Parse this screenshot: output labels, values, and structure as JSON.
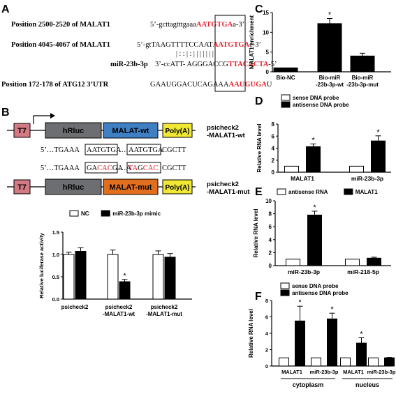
{
  "colors": {
    "red": "#e8202a",
    "t7": "#d47a85",
    "hrluc": "#6d6e71",
    "malat_wt": "#3f7fc4",
    "malat_mut": "#e16e1d",
    "polya": "#f0e834"
  },
  "panel_a": {
    "letter": "A",
    "rows": [
      {
        "label": "Position 2500-2520 of MALAT1",
        "seq_prefix": "5’-gcttagtttgaaa",
        "seq_highlight": "AATGTGA",
        "seq_suffix": "a-3’"
      },
      {
        "label": "Position 4045-4067 of MALAT1",
        "seq_prefix": "5’-gtTAAGTTTTCCAAT",
        "seq_highlight": "AATGTGA",
        "seq_suffix": "c-3’"
      },
      {
        "label": "miR-23b-3p",
        "seq_prefix": "3’-ccATT- AGGGACCG",
        "seq_highlight": "TTACACTA",
        "seq_suffix": "-5’"
      },
      {
        "label": "Position 172-178 of ATG12  3’UTR",
        "seq_prefix": "GAAUGGACUCAGAAA",
        "seq_highlight": "AAUGUGA",
        "seq_suffix": "U"
      }
    ],
    "pairing": "| : :  |     : | | | | | | |"
  },
  "panel_b": {
    "letter": "B",
    "construct_wt": {
      "t7": "T7",
      "hrluc": "hRluc",
      "malat": "MALAT-wt",
      "polya": "Poly(A)",
      "name1": "psicheck2",
      "name2": "-MALAT1-wt"
    },
    "construct_mut": {
      "t7": "T7",
      "hrluc": "hRluc",
      "malat": "MALAT-mut",
      "polya": "Poly(A)",
      "name1": "psicheck2",
      "name2": "-MALAT1-mut"
    },
    "seq_wt": {
      "pre": "5’…TGAAA",
      "site1": "AATGTGA",
      "mid": "…",
      "site2": "AATGTGA",
      "post": "CGCTT"
    },
    "seq_mut": {
      "pre": "5’…TGAAA",
      "s1a": "GA",
      "s1b": "CAC",
      "s1c": "GA",
      "mid": "…A",
      "s2a": "TA",
      "s2b": "G",
      "s2c": "CAC",
      "post": "CGCTT"
    }
  },
  "chart_data": [
    {
      "panel": "B",
      "type": "bar",
      "categories": [
        "psicheck2",
        "psicheck2\n-MALAT1-wt",
        "psicheck2\n-MALAT1-mut"
      ],
      "ylabel": "Relative luciferase activity",
      "ylim": [
        0,
        1.5
      ],
      "yticks": [
        "0.0",
        "0.5",
        "1.0",
        "1.5"
      ],
      "legend": "top",
      "series": [
        {
          "name": "NC",
          "values": [
            1.0,
            1.0,
            1.0
          ],
          "errors": [
            0.05,
            0.1,
            0.08
          ],
          "fill": "#ffffff"
        },
        {
          "name": "miR-23b-3p mimic",
          "values": [
            1.07,
            0.39,
            0.94
          ],
          "errors": [
            0.08,
            0.05,
            0.08
          ],
          "fill": "#000000"
        }
      ],
      "annotations": [
        {
          "category": 1,
          "series": 1,
          "text": "*"
        }
      ]
    },
    {
      "panel": "C",
      "type": "bar",
      "categories": [
        "Bio-NC",
        "Bio-miR\n-23b-3p-wt",
        "Bio-miR\n-23b-3p-mut"
      ],
      "ylabel": "MALAT1 enrichment",
      "ylim": [
        0,
        15
      ],
      "yticks": [
        "0",
        "5",
        "10",
        "15"
      ],
      "series": [
        {
          "name": "",
          "values": [
            1.0,
            12.2,
            4.0
          ],
          "errors": [
            0.0,
            1.3,
            0.7
          ],
          "fill": "#000000"
        }
      ],
      "annotations": [
        {
          "category": 1,
          "series": 0,
          "text": "*"
        }
      ]
    },
    {
      "panel": "D",
      "type": "bar",
      "categories": [
        "MALAT1",
        "miR-23b-3p"
      ],
      "ylabel": "Relative RNA level",
      "ylim": [
        0,
        8
      ],
      "yticks": [
        "0",
        "2",
        "4",
        "6",
        "8"
      ],
      "legend": "top-left",
      "series": [
        {
          "name": "sense DNA probe",
          "values": [
            1.0,
            1.0
          ],
          "errors": [
            0,
            0
          ],
          "fill": "#ffffff"
        },
        {
          "name": "antisense DNA probe",
          "values": [
            4.25,
            5.2
          ],
          "errors": [
            0.45,
            0.85
          ],
          "fill": "#000000"
        }
      ],
      "annotations": [
        {
          "category": 0,
          "series": 1,
          "text": "*"
        },
        {
          "category": 1,
          "series": 1,
          "text": "*"
        }
      ]
    },
    {
      "panel": "E",
      "type": "bar",
      "categories": [
        "miR-23b-3p",
        "miR-218-5p"
      ],
      "ylabel": "Relative RNA level",
      "ylim": [
        0,
        10
      ],
      "yticks": [
        "0",
        "2",
        "4",
        "6",
        "8",
        "10"
      ],
      "legend": "top-left",
      "series": [
        {
          "name": "antisense RNA",
          "values": [
            1.0,
            1.0
          ],
          "errors": [
            0,
            0
          ],
          "fill": "#ffffff"
        },
        {
          "name": "MALAT1",
          "values": [
            7.8,
            1.15
          ],
          "errors": [
            0.6,
            0.15
          ],
          "fill": "#000000"
        }
      ],
      "annotations": [
        {
          "category": 0,
          "series": 1,
          "text": "*"
        }
      ]
    },
    {
      "panel": "F",
      "type": "bar",
      "categories": [
        "MALAT1",
        "miR-23b-3p",
        "MALAT1",
        "miR-23b-3p"
      ],
      "groups": [
        {
          "label": "cytoplasm",
          "span": [
            0,
            1
          ]
        },
        {
          "label": "nucleus",
          "span": [
            2,
            3
          ]
        }
      ],
      "ylabel": "Relative RNA level",
      "ylim": [
        0,
        8
      ],
      "yticks": [
        "0",
        "2",
        "4",
        "6",
        "8"
      ],
      "legend": "top-left",
      "series": [
        {
          "name": "sense DNA probe",
          "values": [
            1.0,
            1.0,
            1.0,
            1.0
          ],
          "errors": [
            0,
            0,
            0,
            0
          ],
          "fill": "#ffffff"
        },
        {
          "name": "antisense DNA probe",
          "values": [
            5.5,
            5.75,
            2.8,
            1.0
          ],
          "errors": [
            1.8,
            0.7,
            0.65,
            0.05
          ],
          "fill": "#000000"
        }
      ],
      "annotations": [
        {
          "category": 0,
          "series": 1,
          "text": "*"
        },
        {
          "category": 1,
          "series": 1,
          "text": "*"
        },
        {
          "category": 2,
          "series": 1,
          "text": "*"
        }
      ]
    }
  ],
  "panel_letters": {
    "c": "C",
    "d": "D",
    "e": "E",
    "f": "F"
  }
}
